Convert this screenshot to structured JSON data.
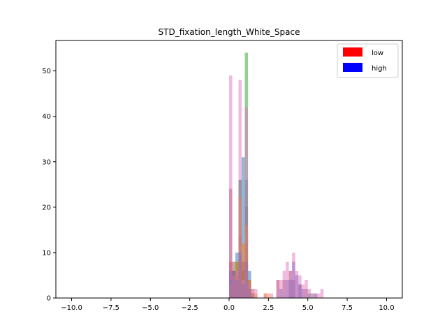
{
  "chart_data": {
    "type": "bar",
    "title": "STD_fixation_length_White_Space",
    "xlabel": "",
    "ylabel": "",
    "xlim": [
      -11.0,
      11.0
    ],
    "ylim": [
      0,
      56.7
    ],
    "x_ticks": [
      -10.0,
      -7.5,
      -5.0,
      -2.5,
      0.0,
      2.5,
      5.0,
      7.5,
      10.0
    ],
    "x_tick_labels": [
      "−10.0",
      "−7.5",
      "−5.0",
      "−2.5",
      "0.0",
      "2.5",
      "5.0",
      "7.5",
      "10.0"
    ],
    "y_ticks": [
      0,
      10,
      20,
      30,
      40,
      50
    ],
    "y_tick_labels": [
      "0",
      "10",
      "20",
      "30",
      "40",
      "50"
    ],
    "grid": false,
    "legend_position": "top-right",
    "legend": [
      {
        "label": "low",
        "color": "#ff0000"
      },
      {
        "label": "high",
        "color": "#0000ff"
      }
    ],
    "bin_width": 0.2,
    "series": [
      {
        "color": "#8c564b",
        "bins": [
          [
            0.0,
            24
          ],
          [
            0.2,
            8
          ],
          [
            0.4,
            6
          ],
          [
            0.6,
            8
          ],
          [
            0.8,
            6
          ],
          [
            1.0,
            20
          ],
          [
            1.2,
            4
          ],
          [
            3.0,
            4
          ],
          [
            3.4,
            4
          ],
          [
            3.8,
            6
          ],
          [
            4.0,
            4
          ],
          [
            4.4,
            3
          ],
          [
            4.8,
            2
          ],
          [
            5.2,
            1
          ]
        ]
      },
      {
        "color": "#d62728",
        "bins": [
          [
            0.0,
            8
          ],
          [
            0.2,
            6
          ],
          [
            0.4,
            5
          ],
          [
            0.6,
            14
          ],
          [
            0.8,
            8
          ],
          [
            1.0,
            12
          ],
          [
            1.2,
            3
          ],
          [
            1.4,
            1
          ]
        ]
      },
      {
        "color": "#1f77b4",
        "bins": [
          [
            0.0,
            4
          ],
          [
            0.2,
            5
          ],
          [
            0.4,
            10
          ],
          [
            0.6,
            26
          ],
          [
            0.8,
            31
          ],
          [
            1.0,
            26
          ],
          [
            1.2,
            6
          ],
          [
            1.4,
            1
          ]
        ]
      },
      {
        "color": "#2ca02c",
        "bins": [
          [
            0.0,
            2
          ],
          [
            0.2,
            6
          ],
          [
            0.4,
            8
          ],
          [
            0.6,
            26
          ],
          [
            0.8,
            4
          ],
          [
            1.0,
            54
          ],
          [
            1.2,
            3
          ],
          [
            1.4,
            1
          ]
        ]
      },
      {
        "color": "#ff7f0e",
        "bins": [
          [
            0.0,
            3
          ],
          [
            0.2,
            5
          ],
          [
            0.4,
            8
          ],
          [
            0.6,
            22
          ],
          [
            0.8,
            12
          ],
          [
            1.0,
            16
          ],
          [
            1.2,
            4
          ],
          [
            1.4,
            2
          ],
          [
            1.6,
            1
          ],
          [
            2.2,
            1
          ],
          [
            2.4,
            1
          ]
        ]
      },
      {
        "color": "#e377c2",
        "bins": [
          [
            0.0,
            49
          ],
          [
            0.2,
            5
          ],
          [
            0.4,
            6
          ],
          [
            0.6,
            48
          ],
          [
            0.8,
            4
          ],
          [
            1.0,
            42
          ],
          [
            1.2,
            3
          ],
          [
            1.4,
            2
          ],
          [
            1.6,
            2
          ],
          [
            2.2,
            1
          ],
          [
            2.6,
            1
          ],
          [
            3.0,
            4
          ],
          [
            3.2,
            4
          ],
          [
            3.4,
            6
          ],
          [
            3.6,
            8
          ],
          [
            3.8,
            6
          ],
          [
            4.0,
            10
          ],
          [
            4.2,
            6
          ],
          [
            4.4,
            5
          ],
          [
            4.6,
            3
          ],
          [
            4.8,
            4
          ],
          [
            5.0,
            2
          ],
          [
            5.4,
            1
          ],
          [
            5.6,
            1
          ],
          [
            5.8,
            2
          ]
        ]
      },
      {
        "color": "#9467bd",
        "bins": [
          [
            0.0,
            6
          ],
          [
            0.2,
            6
          ],
          [
            0.4,
            4
          ],
          [
            0.6,
            10
          ],
          [
            0.8,
            3
          ],
          [
            1.0,
            8
          ],
          [
            1.2,
            2
          ],
          [
            3.2,
            2
          ],
          [
            3.6,
            4
          ],
          [
            3.8,
            4
          ],
          [
            4.0,
            8
          ],
          [
            4.2,
            5
          ],
          [
            4.4,
            3
          ],
          [
            4.6,
            2
          ],
          [
            5.0,
            1
          ],
          [
            5.4,
            1
          ]
        ]
      }
    ]
  }
}
